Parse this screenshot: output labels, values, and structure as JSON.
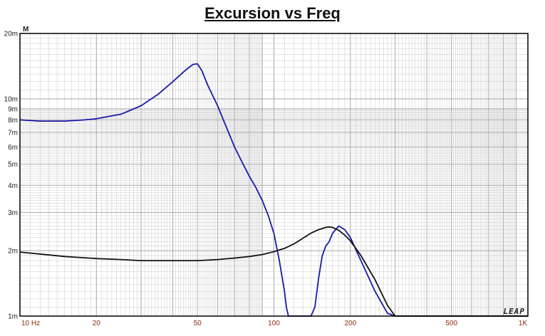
{
  "chart_data": {
    "type": "line",
    "title": "Excursion vs Freq",
    "y_unit_label": "M",
    "watermark": "LEAP",
    "x_scale": "log",
    "y_scale": "log",
    "xlim": [
      10,
      1000
    ],
    "ylim": [
      0.001,
      0.02
    ],
    "grid": true,
    "x_tick_labels": [
      {
        "value": 10,
        "label": "10  Hz"
      },
      {
        "value": 20,
        "label": "20"
      },
      {
        "value": 50,
        "label": "50"
      },
      {
        "value": 100,
        "label": "100"
      },
      {
        "value": 200,
        "label": "200"
      },
      {
        "value": 500,
        "label": "500"
      },
      {
        "value": 1000,
        "label": "1K"
      }
    ],
    "y_tick_labels": [
      {
        "value": 0.001,
        "label": "1m"
      },
      {
        "value": 0.002,
        "label": "2m"
      },
      {
        "value": 0.003,
        "label": "3m"
      },
      {
        "value": 0.004,
        "label": "4m"
      },
      {
        "value": 0.005,
        "label": "5m"
      },
      {
        "value": 0.006,
        "label": "6m"
      },
      {
        "value": 0.007,
        "label": "7m"
      },
      {
        "value": 0.008,
        "label": "8m"
      },
      {
        "value": 0.009,
        "label": "9m"
      },
      {
        "value": 0.01,
        "label": "10m"
      },
      {
        "value": 0.02,
        "label": "20m"
      }
    ],
    "colors": {
      "series_1": "#1a1aa8",
      "series_2": "#111111",
      "grid": "#c8c8c8",
      "axis": "#000000"
    },
    "series": [
      {
        "x": [
          10,
          12,
          15,
          18,
          20,
          25,
          30,
          35,
          40,
          45,
          48,
          50,
          52,
          55,
          60,
          65,
          70,
          75,
          80,
          85,
          90,
          95,
          100,
          105,
          110,
          112,
          114,
          118,
          122,
          126,
          130,
          135,
          140,
          145,
          150,
          155,
          160,
          165,
          170,
          175,
          180,
          190,
          200,
          220,
          250,
          280,
          300,
          320,
          400,
          600,
          1000
        ],
        "y": [
          0.008,
          0.0079,
          0.0079,
          0.008,
          0.0081,
          0.0085,
          0.0093,
          0.0105,
          0.012,
          0.0136,
          0.0144,
          0.0145,
          0.0135,
          0.0115,
          0.0093,
          0.0074,
          0.006,
          0.0051,
          0.0044,
          0.0039,
          0.0034,
          0.0029,
          0.0024,
          0.0018,
          0.0013,
          0.0011,
          0.001,
          0.001,
          0.001,
          0.001,
          0.001,
          0.001,
          0.001,
          0.0011,
          0.0015,
          0.0019,
          0.0021,
          0.0022,
          0.0024,
          0.0025,
          0.0026,
          0.0025,
          0.0023,
          0.0018,
          0.0013,
          0.00103,
          0.001,
          0.001,
          0.001,
          0.001,
          0.001
        ]
      },
      {
        "x": [
          10,
          15,
          20,
          25,
          30,
          35,
          40,
          50,
          60,
          70,
          80,
          90,
          100,
          110,
          120,
          130,
          140,
          150,
          160,
          165,
          170,
          180,
          190,
          200,
          220,
          250,
          280,
          300,
          400,
          600,
          1000
        ],
        "y": [
          0.00197,
          0.00188,
          0.00184,
          0.00182,
          0.0018,
          0.0018,
          0.0018,
          0.0018,
          0.00182,
          0.00185,
          0.00188,
          0.00192,
          0.00198,
          0.00205,
          0.00215,
          0.00228,
          0.00241,
          0.0025,
          0.00256,
          0.00257,
          0.00256,
          0.00248,
          0.00236,
          0.00222,
          0.0019,
          0.00147,
          0.00112,
          0.001,
          0.001,
          0.001,
          0.001
        ]
      }
    ]
  }
}
